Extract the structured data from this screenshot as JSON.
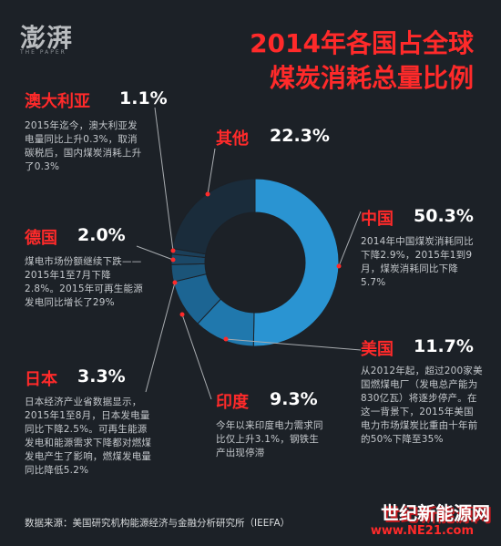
{
  "logo": {
    "text": "澎湃",
    "sub": "THE PAPER"
  },
  "title": {
    "line1": "2014年各国占全球",
    "line2": "煤炭消耗总量比例"
  },
  "chart_data": {
    "type": "pie",
    "title": "2014年各国占全球煤炭消耗总量比例",
    "slices": [
      {
        "label": "中国",
        "value": 50.3,
        "pct_text": "50.3%",
        "color": "#2a94d2"
      },
      {
        "label": "美国",
        "value": 11.7,
        "pct_text": "11.7%",
        "color": "#2078ad"
      },
      {
        "label": "印度",
        "value": 9.3,
        "pct_text": "9.3%",
        "color": "#1c6593"
      },
      {
        "label": "日本",
        "value": 3.3,
        "pct_text": "3.3%",
        "color": "#1b5478"
      },
      {
        "label": "德国",
        "value": 2.0,
        "pct_text": "2.0%",
        "color": "#1b4867"
      },
      {
        "label": "澳大利亚",
        "value": 1.1,
        "pct_text": "1.1%",
        "color": "#1b3f59"
      },
      {
        "label": "其他",
        "value": 22.3,
        "pct_text": "22.3%",
        "color": "#1a2c3b"
      }
    ]
  },
  "descriptions": {
    "china": "2014年中国煤炭消耗同比下降2.9%，2015年1到9月，煤炭消耗同比下降5.7%",
    "usa": "从2012年起，超过200家美国燃煤电厂（发电总产能为830亿瓦）将逐步停产。在这一背景下，2015年美国电力市场煤炭比重由十年前的50%下降至35%",
    "india": "今年以来印度电力需求同比仅上升3.1%，钢铁生产出现停滞",
    "japan": "日本经济产业省数据显示，2015年1至8月，日本发电量同比下降2.5%。可再生能源发电和能源需求下降都对燃煤发电产生了影响，燃煤发电量同比降低5.2%",
    "germany": "煤电市场份额继续下跌——2015年1至7月下降2.8%。2015年可再生能源发电同比增长了29%",
    "australia": "2015年迄今，澳大利亚发电量同比上升0.3%，取消碳税后，国内煤炭消耗上升了0.3%"
  },
  "source": "数据来源：美国研究机构能源经济与金融分析研究所（IEEFA）",
  "watermark": {
    "cn": "世纪新能源网",
    "url": "www.NE21.com"
  }
}
